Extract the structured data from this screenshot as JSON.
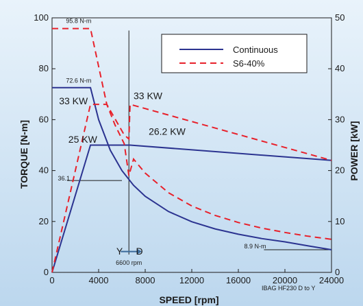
{
  "chart_data": {
    "type": "line",
    "xlabel": "SPEED [rpm]",
    "ylabel": "TORQUE [N-m]",
    "y2label": "POWER [kW]",
    "xlim": [
      0,
      24000
    ],
    "ylim": [
      0,
      100
    ],
    "y2lim": [
      0,
      50
    ],
    "xticks": [
      "0",
      "4000",
      "8000",
      "12000",
      "16000",
      "20000",
      "24000"
    ],
    "yticks": [
      "0",
      "20",
      "40",
      "60",
      "80",
      "100"
    ],
    "y2ticks": [
      "0",
      "10",
      "20",
      "30",
      "40",
      "50"
    ],
    "legend_position": "top-right",
    "legend": [
      "Continuous",
      "S6-40%"
    ],
    "colors": {
      "continuous": "#2b3390",
      "s6": "#e8202a"
    },
    "series": [
      {
        "name": "Continuous",
        "axis": "torque",
        "style": "solid",
        "x": [
          0,
          3000,
          3300,
          4000,
          5000,
          6000,
          7000,
          8000,
          10000,
          12000,
          14000,
          16000,
          18000,
          20000,
          22000,
          24000
        ],
        "y": [
          72.6,
          72.6,
          72.6,
          60.0,
          48.0,
          40.0,
          34.2,
          29.9,
          23.9,
          19.9,
          17.1,
          15.0,
          13.3,
          12.0,
          10.4,
          8.9
        ]
      },
      {
        "name": "Continuous",
        "axis": "power",
        "style": "solid",
        "x": [
          0,
          3300,
          4000,
          6700,
          24000
        ],
        "y": [
          0,
          25,
          25,
          25,
          22
        ]
      },
      {
        "name": "S6-40%",
        "axis": "torque",
        "style": "dashed",
        "x": [
          0,
          3300,
          4700,
          5400,
          6200,
          6600,
          7000,
          8000,
          10000,
          12000,
          14000,
          16000,
          18000,
          20000,
          22000,
          24000
        ],
        "y": [
          95.8,
          95.8,
          66.0,
          58.0,
          50.5,
          38.0,
          44.5,
          39.0,
          31.3,
          26.1,
          22.4,
          19.6,
          17.4,
          15.7,
          14.2,
          13.0
        ]
      },
      {
        "name": "S6-40%",
        "axis": "power",
        "style": "dashed",
        "x": [
          0,
          3300,
          4700,
          6200,
          6600,
          6700,
          24000
        ],
        "y": [
          0,
          33,
          33,
          27,
          26.2,
          33,
          22
        ]
      }
    ],
    "annotations": [
      {
        "text": "95.8 N-m",
        "x": 1200,
        "y": 98
      },
      {
        "text": "72.6 N-m",
        "x": 1200,
        "y": 74.5
      },
      {
        "text": "33 KW",
        "x": 600,
        "y": 66
      },
      {
        "text": "25 KW",
        "x": 1400,
        "y": 51
      },
      {
        "text": "33 KW",
        "x": 7000,
        "y": 68
      },
      {
        "text": "26.2 KW",
        "x": 8300,
        "y": 54
      },
      {
        "text": "36.1",
        "x": 500,
        "y": 36.1
      },
      {
        "text": "Y",
        "x": 5800,
        "y": 7
      },
      {
        "text": "D",
        "x": 7500,
        "y": 7
      },
      {
        "text": "6600 rpm",
        "x": 6600,
        "y": 3
      },
      {
        "text": "8.9 N-m",
        "x": 16500,
        "y": 9.5
      },
      {
        "text": "IBAG HF230  D  to  Y",
        "x": 18000,
        "y": -7
      }
    ]
  }
}
